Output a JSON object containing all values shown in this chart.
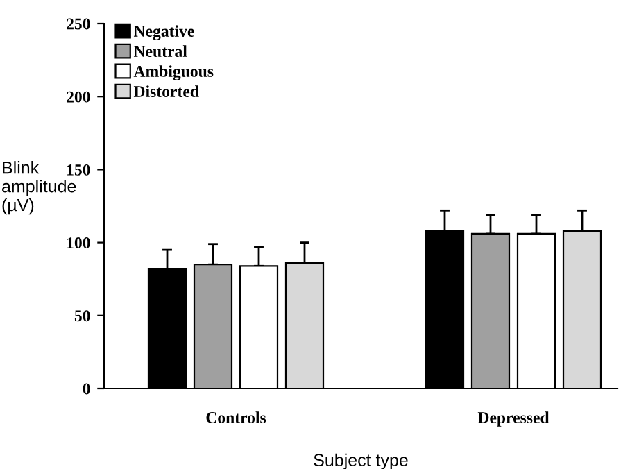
{
  "chart_data": {
    "type": "bar",
    "xlabel": "Subject type",
    "ylabel": "Blink\namplitude\n(µV)",
    "categories": [
      "Controls",
      "Depressed"
    ],
    "series": [
      {
        "name": "Negative",
        "color": "#000000",
        "values": [
          82,
          108
        ],
        "errors": [
          [
            82,
            95
          ],
          [
            108,
            122
          ]
        ]
      },
      {
        "name": "Neutral",
        "color": "#a0a0a0",
        "values": [
          85,
          106
        ],
        "errors": [
          [
            85,
            99
          ],
          [
            106,
            119
          ]
        ]
      },
      {
        "name": "Ambiguous",
        "color": "#ffffff",
        "values": [
          84,
          106
        ],
        "errors": [
          [
            84,
            97
          ],
          [
            106,
            119
          ]
        ]
      },
      {
        "name": "Distorted",
        "color": "#d8d8d8",
        "values": [
          86,
          108
        ],
        "errors": [
          [
            86,
            100
          ],
          [
            108,
            122
          ]
        ]
      }
    ],
    "ylim": [
      0,
      250
    ],
    "yticks": [
      0,
      50,
      100,
      150,
      200,
      250
    ],
    "grid": false,
    "legend": "top left"
  }
}
